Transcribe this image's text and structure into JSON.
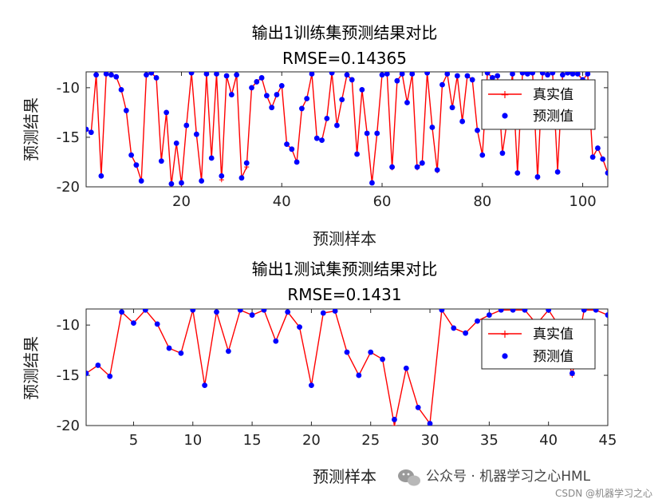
{
  "chart_data": [
    {
      "type": "line",
      "title": "输出1训练集预测结果对比",
      "subtitle": "RMSE=0.14365",
      "xlabel": "预测样本",
      "ylabel": "预测结果",
      "xlim": [
        1,
        105
      ],
      "ylim": [
        -20,
        -8.4
      ],
      "xticks": [
        20,
        40,
        60,
        80,
        100
      ],
      "yticks": [
        -20,
        -15,
        -10
      ],
      "legend": {
        "placement": "top-right",
        "entries": [
          "真实值",
          "预测值"
        ]
      },
      "series_colors": [
        "#ff0000",
        "#0000ff"
      ],
      "x": [
        1,
        2,
        3,
        4,
        5,
        6,
        7,
        8,
        9,
        10,
        11,
        12,
        13,
        14,
        15,
        16,
        17,
        18,
        19,
        20,
        21,
        22,
        23,
        24,
        25,
        26,
        27,
        28,
        29,
        30,
        31,
        32,
        33,
        34,
        35,
        36,
        37,
        38,
        39,
        40,
        41,
        42,
        43,
        44,
        45,
        46,
        47,
        48,
        49,
        50,
        51,
        52,
        53,
        54,
        55,
        56,
        57,
        58,
        59,
        60,
        61,
        62,
        63,
        64,
        65,
        66,
        67,
        68,
        69,
        70,
        71,
        72,
        73,
        74,
        75,
        76,
        77,
        78,
        79,
        80,
        81,
        82,
        83,
        84,
        85,
        86,
        87,
        88,
        89,
        90,
        91,
        92,
        93,
        94,
        95,
        96,
        97,
        98,
        99,
        100,
        101,
        102,
        103,
        104,
        105
      ],
      "series": [
        {
          "name": "真实值",
          "values": [
            -14.2,
            -14.5,
            -8.7,
            -18.9,
            -8.6,
            -8.7,
            -8.9,
            -10.2,
            -12.3,
            -16.8,
            -17.8,
            -19.4,
            -8.7,
            -8.5,
            -9.0,
            -17.4,
            -12.5,
            -19.8,
            -15.6,
            -19.7,
            -13.8,
            -8.5,
            -14.7,
            -19.4,
            -8.6,
            -17.1,
            -8.6,
            -19.3,
            -8.8,
            -10.7,
            -8.7,
            -19.1,
            -18.0,
            -10.0,
            -9.4,
            -9.0,
            -10.8,
            -12.0,
            -10.7,
            -9.8,
            -15.7,
            -16.2,
            -17.5,
            -12.1,
            -11.1,
            -8.6,
            -15.1,
            -15.3,
            -13.1,
            -8.5,
            -13.8,
            -11.2,
            -8.7,
            -9.2,
            -16.7,
            -10.2,
            -14.6,
            -19.6,
            -14.6,
            -8.7,
            -8.6,
            -18.1,
            -9.3,
            -8.6,
            -11.5,
            -8.6,
            -18.1,
            -17.6,
            -8.5,
            -14.0,
            -18.4,
            -9.7,
            -8.6,
            -12.0,
            -8.8,
            -13.4,
            -8.8,
            -9.2,
            -14.3,
            -16.8,
            -8.5,
            -9.0,
            -8.8,
            -16.6,
            -13.1,
            -8.6,
            -18.6,
            -8.5,
            -8.6,
            -8.5,
            -19.1,
            -8.5,
            -8.7,
            -8.5,
            -18.4,
            -8.7,
            -8.5,
            -8.6,
            -8.6,
            -9.2,
            -8.6,
            -17.0,
            -16.1,
            -17.2,
            -18.6
          ]
        },
        {
          "name": "预测值",
          "values": [
            -14.2,
            -14.5,
            -8.7,
            -18.9,
            -8.6,
            -8.7,
            -8.9,
            -10.2,
            -12.3,
            -16.8,
            -17.8,
            -19.4,
            -8.7,
            -8.5,
            -9.0,
            -17.4,
            -12.5,
            -19.7,
            -15.6,
            -19.6,
            -13.8,
            -8.5,
            -14.7,
            -19.4,
            -8.6,
            -17.1,
            -8.6,
            -18.9,
            -8.8,
            -10.7,
            -8.7,
            -19.1,
            -17.6,
            -10.0,
            -9.4,
            -9.0,
            -10.8,
            -12.0,
            -10.7,
            -9.8,
            -15.7,
            -16.2,
            -17.5,
            -12.1,
            -11.1,
            -8.6,
            -15.1,
            -15.3,
            -13.1,
            -8.5,
            -13.8,
            -11.2,
            -8.7,
            -9.2,
            -16.7,
            -10.2,
            -14.6,
            -19.6,
            -14.6,
            -8.7,
            -8.6,
            -18.0,
            -9.3,
            -8.6,
            -11.5,
            -8.6,
            -18.0,
            -17.6,
            -8.5,
            -14.0,
            -18.3,
            -9.7,
            -8.6,
            -12.0,
            -8.8,
            -13.4,
            -8.8,
            -9.2,
            -14.3,
            -16.8,
            -8.5,
            -9.0,
            -8.8,
            -16.6,
            -13.1,
            -8.6,
            -18.6,
            -8.5,
            -8.6,
            -8.5,
            -19.0,
            -8.5,
            -8.7,
            -8.5,
            -18.5,
            -8.7,
            -8.5,
            -8.6,
            -8.6,
            -9.2,
            -8.6,
            -17.0,
            -16.1,
            -17.2,
            -18.6
          ]
        }
      ]
    },
    {
      "type": "line",
      "title": "输出1测试集预测结果对比",
      "subtitle": "RMSE=0.1431",
      "xlabel": "预测样本",
      "ylabel": "预测结果",
      "xlim": [
        1,
        45
      ],
      "ylim": [
        -20,
        -8.4
      ],
      "xticks": [
        5,
        10,
        15,
        20,
        25,
        30,
        35,
        40,
        45
      ],
      "yticks": [
        -20,
        -15,
        -10
      ],
      "legend": {
        "placement": "top-right",
        "entries": [
          "真实值",
          "预测值"
        ]
      },
      "series_colors": [
        "#ff0000",
        "#0000ff"
      ],
      "x": [
        1,
        2,
        3,
        4,
        5,
        6,
        7,
        8,
        9,
        10,
        11,
        12,
        13,
        14,
        15,
        16,
        17,
        18,
        19,
        20,
        21,
        22,
        23,
        24,
        25,
        26,
        27,
        28,
        29,
        30,
        31,
        32,
        33,
        34,
        35,
        36,
        37,
        38,
        39,
        40,
        41,
        42,
        43,
        44,
        45
      ],
      "series": [
        {
          "name": "真实值",
          "values": [
            -14.8,
            -14.0,
            -15.1,
            -8.7,
            -9.8,
            -8.5,
            -9.9,
            -12.3,
            -12.8,
            -8.5,
            -16.0,
            -8.7,
            -12.6,
            -8.5,
            -9.0,
            -8.5,
            -11.6,
            -8.7,
            -10.2,
            -16.0,
            -8.8,
            -8.6,
            -12.7,
            -15.0,
            -12.7,
            -13.4,
            -20.0,
            -14.3,
            -18.2,
            -19.8,
            -8.5,
            -10.3,
            -10.8,
            -9.6,
            -9.0,
            -8.5,
            -8.5,
            -8.5,
            -9.9,
            -8.5,
            -10.3,
            -15.0,
            -8.5,
            -8.5,
            -9.0
          ]
        },
        {
          "name": "预测值",
          "values": [
            -14.8,
            -14.0,
            -15.1,
            -8.7,
            -9.8,
            -8.5,
            -9.9,
            -12.3,
            -12.8,
            -8.5,
            -16.0,
            -8.7,
            -12.6,
            -8.5,
            -9.0,
            -8.5,
            -11.6,
            -8.7,
            -10.2,
            -16.0,
            -8.8,
            -8.6,
            -12.7,
            -15.0,
            -12.7,
            -13.4,
            -19.4,
            -14.3,
            -18.2,
            -19.8,
            -8.5,
            -10.3,
            -10.8,
            -9.6,
            -9.0,
            -8.5,
            -8.5,
            -8.5,
            -9.9,
            -8.5,
            -10.3,
            -14.8,
            -8.5,
            -8.5,
            -9.0
          ]
        }
      ]
    }
  ],
  "watermark": {
    "text": "公众号 · 机器学习之心HML",
    "sub": "CSDN @机器学习之心",
    "icon": "wechat-icon"
  }
}
